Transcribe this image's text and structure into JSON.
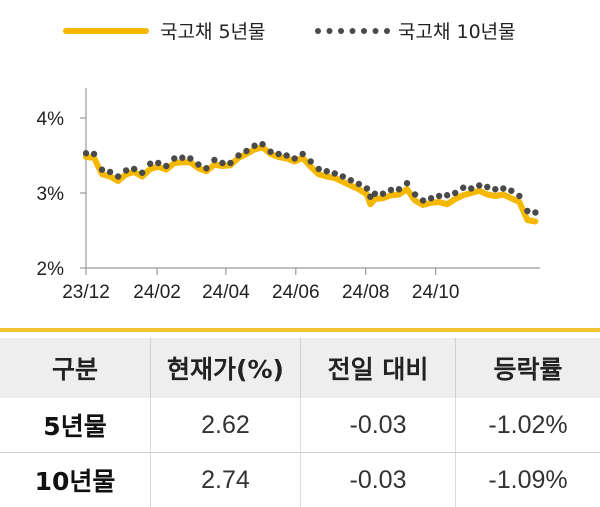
{
  "chart_data": {
    "type": "line",
    "x_ticks": [
      "23/12",
      "24/02",
      "24/04",
      "24/06",
      "24/08",
      "24/10"
    ],
    "y_ticks": [
      "2%",
      "3%",
      "4%"
    ],
    "ylim": [
      2,
      4.4
    ],
    "x_range": [
      "2023-12-01",
      "2024-12-31"
    ],
    "legend_position": "top",
    "series": [
      {
        "name": "국고채 5년물",
        "style": "solid",
        "color": "#f5b800",
        "x": [
          "2023-12-01",
          "2023-12-08",
          "2023-12-15",
          "2023-12-22",
          "2023-12-29",
          "2024-01-05",
          "2024-01-12",
          "2024-01-19",
          "2024-01-26",
          "2024-02-02",
          "2024-02-09",
          "2024-02-16",
          "2024-02-23",
          "2024-03-01",
          "2024-03-08",
          "2024-03-15",
          "2024-03-22",
          "2024-03-29",
          "2024-04-05",
          "2024-04-12",
          "2024-04-19",
          "2024-04-26",
          "2024-05-03",
          "2024-05-10",
          "2024-05-17",
          "2024-05-24",
          "2024-05-31",
          "2024-06-07",
          "2024-06-14",
          "2024-06-21",
          "2024-06-28",
          "2024-07-05",
          "2024-07-12",
          "2024-07-19",
          "2024-07-26",
          "2024-08-02",
          "2024-08-05",
          "2024-08-09",
          "2024-08-16",
          "2024-08-23",
          "2024-08-30",
          "2024-09-06",
          "2024-09-13",
          "2024-09-20",
          "2024-09-27",
          "2024-10-04",
          "2024-10-11",
          "2024-10-18",
          "2024-10-25",
          "2024-11-01",
          "2024-11-08",
          "2024-11-15",
          "2024-11-22",
          "2024-11-29",
          "2024-12-06",
          "2024-12-13",
          "2024-12-20",
          "2024-12-27"
        ],
        "values": [
          3.48,
          3.47,
          3.25,
          3.22,
          3.16,
          3.25,
          3.28,
          3.22,
          3.32,
          3.35,
          3.31,
          3.4,
          3.41,
          3.41,
          3.33,
          3.29,
          3.38,
          3.36,
          3.37,
          3.47,
          3.52,
          3.58,
          3.61,
          3.52,
          3.48,
          3.46,
          3.42,
          3.47,
          3.35,
          3.25,
          3.22,
          3.2,
          3.15,
          3.1,
          3.05,
          2.98,
          2.85,
          2.92,
          2.93,
          2.97,
          2.98,
          3.05,
          2.9,
          2.84,
          2.87,
          2.88,
          2.85,
          2.92,
          2.97,
          3.0,
          3.03,
          2.98,
          2.96,
          2.98,
          2.93,
          2.88,
          2.64,
          2.62
        ]
      },
      {
        "name": "국고채 10년물",
        "style": "dotted",
        "color": "#4a4a4a",
        "x": [
          "2023-12-01",
          "2023-12-08",
          "2023-12-15",
          "2023-12-22",
          "2023-12-29",
          "2024-01-05",
          "2024-01-12",
          "2024-01-19",
          "2024-01-26",
          "2024-02-02",
          "2024-02-09",
          "2024-02-16",
          "2024-02-23",
          "2024-03-01",
          "2024-03-08",
          "2024-03-15",
          "2024-03-22",
          "2024-03-29",
          "2024-04-05",
          "2024-04-12",
          "2024-04-19",
          "2024-04-26",
          "2024-05-03",
          "2024-05-10",
          "2024-05-17",
          "2024-05-24",
          "2024-05-31",
          "2024-06-07",
          "2024-06-14",
          "2024-06-21",
          "2024-06-28",
          "2024-07-05",
          "2024-07-12",
          "2024-07-19",
          "2024-07-26",
          "2024-08-02",
          "2024-08-05",
          "2024-08-09",
          "2024-08-16",
          "2024-08-23",
          "2024-08-30",
          "2024-09-06",
          "2024-09-13",
          "2024-09-20",
          "2024-09-27",
          "2024-10-04",
          "2024-10-11",
          "2024-10-18",
          "2024-10-25",
          "2024-11-01",
          "2024-11-08",
          "2024-11-15",
          "2024-11-22",
          "2024-11-29",
          "2024-12-06",
          "2024-12-13",
          "2024-12-20",
          "2024-12-27"
        ],
        "values": [
          3.53,
          3.52,
          3.31,
          3.28,
          3.22,
          3.3,
          3.32,
          3.27,
          3.39,
          3.4,
          3.36,
          3.46,
          3.47,
          3.46,
          3.38,
          3.33,
          3.44,
          3.4,
          3.4,
          3.5,
          3.56,
          3.63,
          3.65,
          3.55,
          3.52,
          3.5,
          3.46,
          3.52,
          3.42,
          3.32,
          3.29,
          3.26,
          3.22,
          3.17,
          3.12,
          3.06,
          2.95,
          2.99,
          2.99,
          3.04,
          3.05,
          3.13,
          2.98,
          2.9,
          2.93,
          2.96,
          2.97,
          3.0,
          3.07,
          3.06,
          3.1,
          3.08,
          3.05,
          3.06,
          3.03,
          2.96,
          2.76,
          2.74
        ]
      }
    ]
  },
  "table": {
    "headers": [
      "구분",
      "현재가(%)",
      "전일 대비",
      "등락률"
    ],
    "rows": [
      {
        "name": "5년물",
        "price": "2.62",
        "change": "-0.03",
        "rate": "-1.02%"
      },
      {
        "name": "10년물",
        "price": "2.74",
        "change": "-0.03",
        "rate": "-1.09%"
      }
    ]
  },
  "colors": {
    "accent": "#f5b800",
    "header_bg": "#eeeeee",
    "rule": "#f1c232",
    "dots": "#4a4a4a"
  }
}
